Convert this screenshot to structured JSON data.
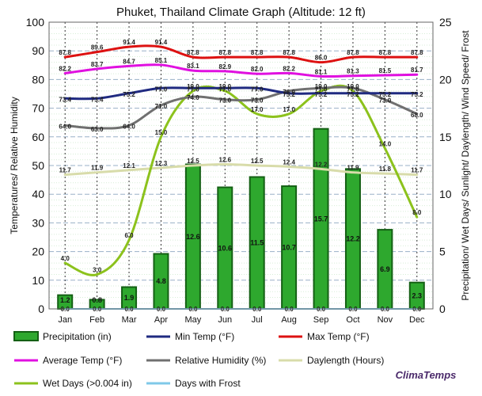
{
  "chart_data": {
    "type": "bar",
    "title": "Phuket, Thailand Climate Graph (Altitude: 12 ft)",
    "ylabel_left": "Temperatures/ Relative Humidity",
    "ylabel_right": "Precipitation/ Wet Days/ Sunlight/ Daylength/ Wind Speed/ Frost",
    "ylim_left": [
      0,
      100
    ],
    "ylim_right": [
      0,
      25
    ],
    "yticks_left": [
      "0",
      "10",
      "20",
      "30",
      "40",
      "50",
      "60",
      "70",
      "80",
      "90",
      "100"
    ],
    "yticks_right": [
      "0",
      "5",
      "10",
      "15",
      "20",
      "25"
    ],
    "categories": [
      "Jan",
      "Feb",
      "Mar",
      "Apr",
      "May",
      "Jun",
      "Jul",
      "Aug",
      "Sep",
      "Oct",
      "Nov",
      "Dec"
    ],
    "grid": true,
    "legend_position": "bottom",
    "brand": "ClimaTemps",
    "series": [
      {
        "name": "Precipitation (in)",
        "type": "bar",
        "axis": "right",
        "color": "#2ea82e",
        "values": [
          1.2,
          0.8,
          1.9,
          4.8,
          12.6,
          10.6,
          11.5,
          10.7,
          15.7,
          12.2,
          6.9,
          2.3
        ]
      },
      {
        "name": "Min Temp (°F)",
        "type": "line",
        "axis": "left",
        "color": "#1f2a80",
        "values": [
          73.4,
          73.4,
          75.2,
          77.0,
          77.0,
          77.0,
          77.0,
          75.2,
          75.2,
          75.2,
          75.2,
          75.2
        ]
      },
      {
        "name": "Max Temp (°F)",
        "type": "line",
        "axis": "left",
        "color": "#dd1111",
        "values": [
          87.8,
          89.6,
          91.4,
          91.4,
          87.8,
          87.8,
          87.8,
          87.8,
          86.0,
          87.8,
          87.8,
          87.8
        ]
      },
      {
        "name": "Average Temp (°F)",
        "type": "line",
        "axis": "left",
        "color": "#e010e0",
        "values": [
          82.2,
          83.7,
          84.7,
          85.1,
          83.1,
          82.9,
          82.0,
          82.2,
          81.1,
          81.3,
          81.5,
          81.7
        ]
      },
      {
        "name": "Relative Humidity (%)",
        "type": "line",
        "axis": "left",
        "color": "#707070",
        "values": [
          64.0,
          63.0,
          64.0,
          71.0,
          74.0,
          73.0,
          73.0,
          76.0,
          77.0,
          77.0,
          73.0,
          68.0
        ]
      },
      {
        "name": "Daylength (Hours)",
        "type": "line",
        "axis": "right",
        "color": "#d8dcaa",
        "values": [
          11.7,
          11.9,
          12.1,
          12.3,
          12.5,
          12.6,
          12.5,
          12.4,
          12.2,
          11.9,
          11.8,
          11.7
        ]
      },
      {
        "name": "Wet Days (>0.004 in)",
        "type": "line",
        "axis": "right",
        "color": "#8cc21c",
        "values": [
          4.0,
          3.0,
          6.0,
          15.0,
          19.0,
          19.0,
          17.0,
          17.0,
          19.0,
          19.0,
          14.0,
          8.0
        ]
      },
      {
        "name": "Days with Frost",
        "type": "line",
        "axis": "right",
        "color": "#7fc8e8",
        "values": [
          0.0,
          0.0,
          0.0,
          0.0,
          0.0,
          0.0,
          0.0,
          0.0,
          0.0,
          0.0,
          0.0,
          0.0
        ]
      }
    ]
  }
}
